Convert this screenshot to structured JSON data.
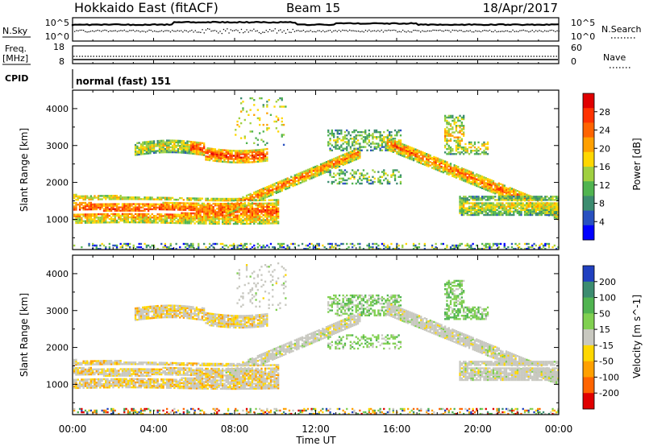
{
  "header": {
    "site": "Hokkaido East (fitACF)",
    "beam": "Beam 15",
    "date": "18/Apr/2017"
  },
  "noise_panel": {
    "left_label": "N.Sky",
    "right_label": "N.Search",
    "left_ticks": [
      "10^5",
      "10^0"
    ],
    "right_ticks": [
      "10^5",
      "10^0"
    ]
  },
  "freq_panel": {
    "left_label_1": "Freq.",
    "left_label_2": "[MHz]",
    "right_label": "Nave",
    "left_ticks": [
      "18",
      "8"
    ],
    "right_ticks": [
      "60",
      "0"
    ]
  },
  "cpid": {
    "label": "CPID",
    "value": "normal (fast) 151"
  },
  "chart_data": [
    {
      "type": "heatmap",
      "title": "Power",
      "quantity": "power",
      "xlabel": "",
      "ylabel": "Slant Range [km]",
      "xlim": [
        "00:00",
        "24:00"
      ],
      "ylim": [
        180,
        4500
      ],
      "x_ticks": [
        "00:00",
        "04:00",
        "08:00",
        "12:00",
        "16:00",
        "20:00",
        "00:00"
      ],
      "y_ticks": [
        1000,
        2000,
        3000,
        4000
      ],
      "colorbar": {
        "label": "Power [dB]",
        "ticks": [
          4,
          8,
          12,
          16,
          20,
          24,
          28
        ],
        "range": [
          0,
          32
        ],
        "colors": [
          "#0000ff",
          "#2850c0",
          "#3c8c70",
          "#50b450",
          "#a0d040",
          "#ffd700",
          "#ffa000",
          "#ff6400",
          "#ff3200",
          "#e00000"
        ]
      },
      "features": [
        {
          "name": "lower band",
          "start_hr": 0,
          "end_hr": 10,
          "range_km": [
            900,
            1700
          ],
          "power_db": 24
        },
        {
          "name": "rising trace",
          "start_hr": 8,
          "end_hr": 14,
          "range_km": [
            1300,
            2800
          ],
          "power_db": 22
        },
        {
          "name": "upper patch",
          "start_hr": 3,
          "end_hr": 9.5,
          "range_km": [
            2700,
            3300
          ],
          "power_db": 18
        },
        {
          "name": "descending trace",
          "start_hr": 16,
          "end_hr": 24,
          "range_km": [
            1000,
            3000
          ],
          "power_db": 22
        },
        {
          "name": "late patch",
          "start_hr": 18.5,
          "end_hr": 20.5,
          "range_km": [
            2800,
            3800
          ],
          "power_db": 18
        }
      ]
    },
    {
      "type": "heatmap",
      "title": "Velocity",
      "quantity": "velocity",
      "xlabel": "Time UT",
      "ylabel": "Slant Range [km]",
      "xlim": [
        "00:00",
        "24:00"
      ],
      "ylim": [
        180,
        4500
      ],
      "x_ticks": [
        "00:00",
        "04:00",
        "08:00",
        "12:00",
        "16:00",
        "20:00",
        "00:00"
      ],
      "y_ticks": [
        1000,
        2000,
        3000,
        4000
      ],
      "colorbar": {
        "label": "Velocity [m s^-1]",
        "ticks": [
          200,
          100,
          50,
          15,
          -15,
          -50,
          -100,
          -200
        ],
        "colors": [
          "#2040c0",
          "#3c8c70",
          "#50b450",
          "#80d050",
          "#c8c8c0",
          "#ffd700",
          "#ffa000",
          "#ff6400",
          "#e00000"
        ]
      },
      "features": [
        {
          "name": "lower band",
          "start_hr": 0,
          "end_hr": 10,
          "range_km": [
            900,
            1700
          ],
          "velocity": -20
        },
        {
          "name": "rising trace",
          "start_hr": 8,
          "end_hr": 14,
          "range_km": [
            1300,
            2800
          ],
          "velocity": 0
        },
        {
          "name": "upper patch",
          "start_hr": 3,
          "end_hr": 9.5,
          "range_km": [
            2700,
            3300
          ],
          "velocity": -30
        },
        {
          "name": "descending trace",
          "start_hr": 16,
          "end_hr": 24,
          "range_km": [
            1000,
            3000
          ],
          "velocity": 0
        },
        {
          "name": "late patch",
          "start_hr": 18.5,
          "end_hr": 20.5,
          "range_km": [
            2800,
            3800
          ],
          "velocity": 40
        }
      ]
    }
  ]
}
